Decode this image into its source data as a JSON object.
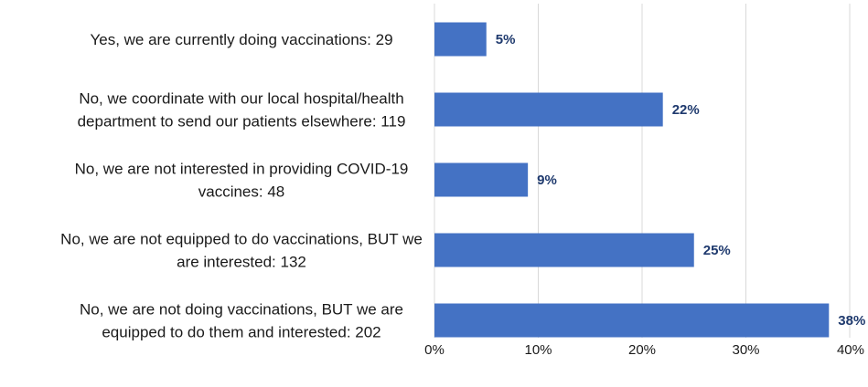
{
  "chart_data": {
    "type": "bar",
    "orientation": "horizontal",
    "title": "",
    "xlabel": "",
    "ylabel": "",
    "xlim": [
      0,
      40
    ],
    "grid": true,
    "bar_color": "#4472C4",
    "label_color": "#1F3A6E",
    "categories": [
      [
        "Yes, we are currently doing vaccinations: 29"
      ],
      [
        "No, we coordinate with our local hospital/health",
        "department to send our patients elsewhere: 119"
      ],
      [
        "No, we are not interested in providing COVID-19",
        "vaccines: 48"
      ],
      [
        "No, we are not equipped to do vaccinations, BUT we",
        "are interested: 132"
      ],
      [
        "No, we are not doing vaccinations, BUT we are",
        "equipped to do them and interested: 202"
      ]
    ],
    "values": [
      5,
      22,
      9,
      25,
      38
    ],
    "value_labels": [
      "5%",
      "22%",
      "9%",
      "25%",
      "38%"
    ],
    "ticks": [
      {
        "value": 0,
        "label": "0%"
      },
      {
        "value": 10,
        "label": "10%"
      },
      {
        "value": 20,
        "label": "20%"
      },
      {
        "value": 30,
        "label": "30%"
      },
      {
        "value": 40,
        "label": "40%"
      }
    ]
  }
}
